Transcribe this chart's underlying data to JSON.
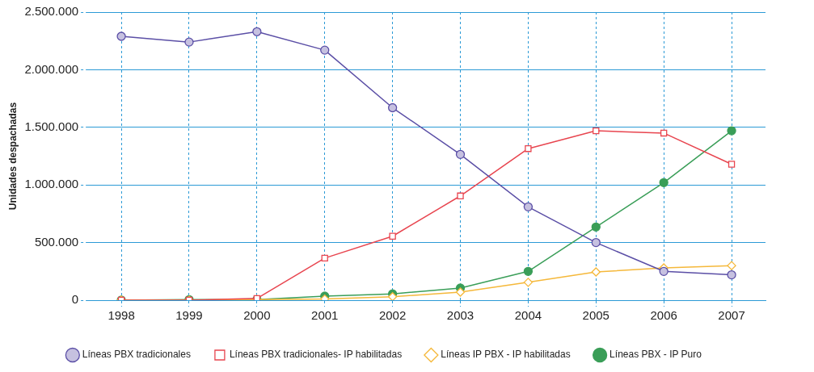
{
  "chart_data": {
    "type": "line",
    "ylabel": "Unidades despachadas",
    "categories": [
      "1998",
      "1999",
      "2000",
      "2001",
      "2002",
      "2003",
      "2004",
      "2005",
      "2006",
      "2007"
    ],
    "series": [
      {
        "name": "Líneas PBX tradicionales",
        "color": "#5b4fa6",
        "marker": "circle",
        "values": [
          2290000,
          2240000,
          2330000,
          2170000,
          1670000,
          1265000,
          810000,
          500000,
          250000,
          220000
        ]
      },
      {
        "name": "Líneas PBX tradicionales- IP habilitadas",
        "color": "#e8454f",
        "marker": "square",
        "values": [
          0,
          0,
          15000,
          365000,
          555000,
          905000,
          1315000,
          1470000,
          1450000,
          1180000
        ]
      },
      {
        "name": "Líneas IP PBX - IP habilitadas",
        "color": "#f5b83a",
        "marker": "diamond",
        "values": [
          0,
          0,
          5000,
          10000,
          30000,
          70000,
          155000,
          245000,
          280000,
          300000
        ]
      },
      {
        "name": "Líneas PBX - IP Puro",
        "color": "#3a9e58",
        "marker": "circle",
        "values": [
          0,
          5000,
          5000,
          35000,
          55000,
          105000,
          250000,
          635000,
          1020000,
          1470000
        ]
      }
    ],
    "ylim": [
      0,
      2500000
    ],
    "yticks": [
      0,
      {
        "value": 500000,
        "label": "500.000"
      },
      {
        "value": 1000000,
        "label": "1.000.000"
      },
      {
        "value": 1500000,
        "label": "1.500.000"
      },
      {
        "value": 2000000,
        "label": "2.000.000"
      },
      {
        "value": 2500000,
        "label": "2.500.000"
      }
    ],
    "grid": true,
    "legend": "bottom",
    "line_style": "solid"
  }
}
